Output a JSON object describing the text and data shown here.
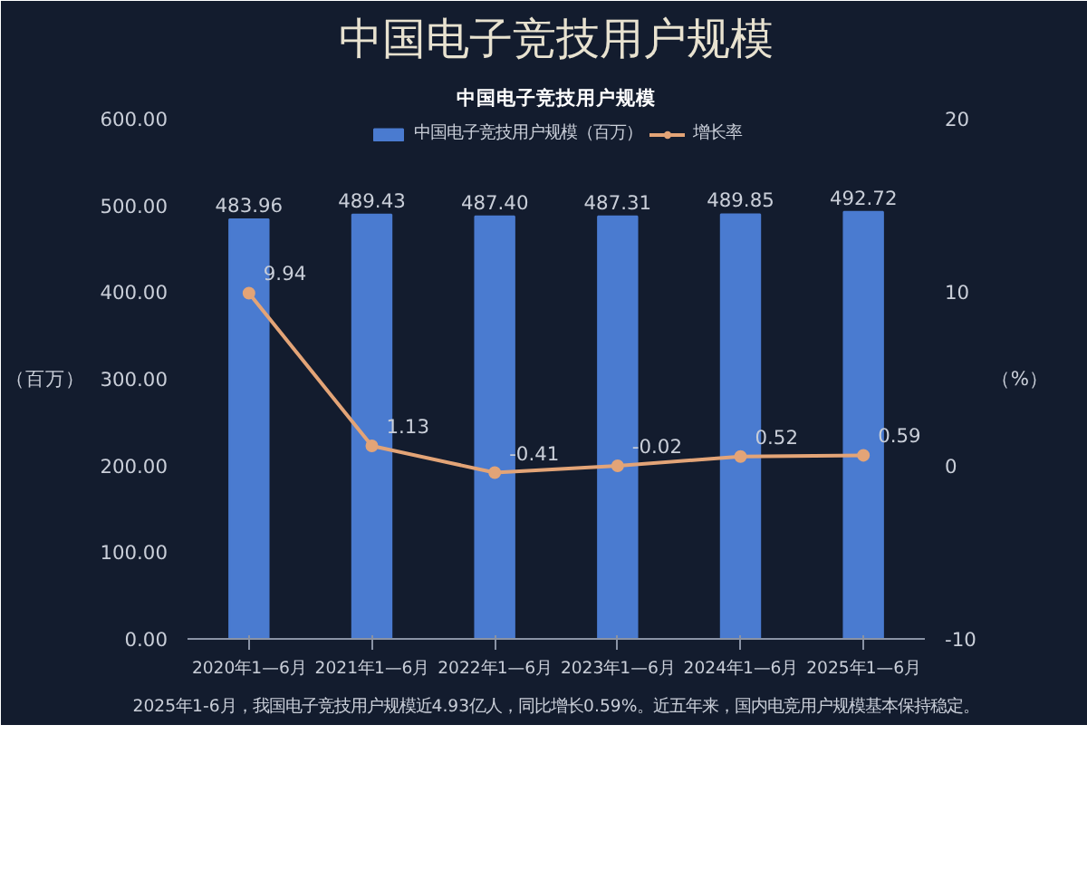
{
  "chart_data": {
    "type": "bar",
    "title": "中国电子竞技用户规模",
    "subtitle": "中国电子竞技用户规模",
    "ylabel": "（百万）",
    "y2label": "（%）",
    "categories": [
      "2020年1—6月",
      "2021年1—6月",
      "2022年1—6月",
      "2023年1—6月",
      "2024年1—6月",
      "2025年1—6月"
    ],
    "series": [
      {
        "name": "中国电子竞技用户规模（百万）",
        "type": "bar",
        "color": "#4a7bd0",
        "values": [
          483.96,
          489.43,
          487.4,
          487.31,
          489.85,
          492.72
        ],
        "value_labels": [
          "483.96",
          "489.43",
          "487.40",
          "487.31",
          "489.85",
          "492.72"
        ]
      },
      {
        "name": "增长率",
        "type": "line",
        "axis": "y2",
        "color": "#e3a477",
        "values": [
          9.94,
          1.13,
          -0.41,
          -0.02,
          0.52,
          0.59
        ]
      }
    ],
    "ylim": [
      0,
      600
    ],
    "yticks": [
      {
        "value": 0,
        "label": "0.00"
      },
      {
        "value": 100,
        "label": "100.00"
      },
      {
        "value": 200,
        "label": "200.00"
      },
      {
        "value": 300,
        "label": "300.00"
      },
      {
        "value": 400,
        "label": "400.00"
      },
      {
        "value": 500,
        "label": "500.00"
      },
      {
        "value": 600,
        "label": "600.00"
      }
    ],
    "y2lim": [
      -10,
      20
    ],
    "y2ticks": [
      -10,
      0,
      10,
      20
    ],
    "data_labels": true,
    "legend": "top",
    "grid": false,
    "marker": "circle",
    "annotations": [
      "2025年1-6月，我国电子竞技用户规模近4.93亿人，同比增长0.59%。近五年来，国内电竞用户规模基本保持稳定。"
    ]
  }
}
